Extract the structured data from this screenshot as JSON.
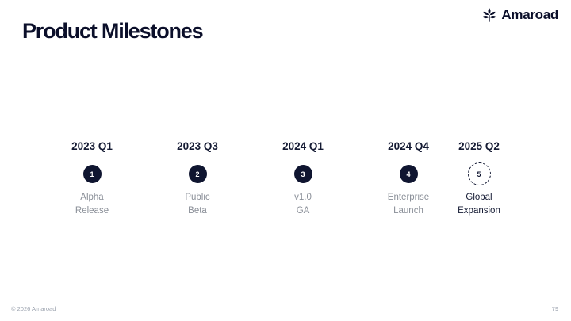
{
  "slide": {
    "title": "Product Milestones"
  },
  "brand": {
    "name": "Amaroad",
    "icon": "leaf-logo-icon",
    "color": "#0b0f2a"
  },
  "milestones": [
    {
      "date": "2023 Q1",
      "number": "1",
      "label_line1": "Alpha",
      "label_line2": "Release",
      "status": "done"
    },
    {
      "date": "2023 Q3",
      "number": "2",
      "label_line1": "Public",
      "label_line2": "Beta",
      "status": "done"
    },
    {
      "date": "2024 Q1",
      "number": "3",
      "label_line1": "v1.0",
      "label_line2": "GA",
      "status": "done"
    },
    {
      "date": "2024 Q4",
      "number": "4",
      "label_line1": "Enterprise",
      "label_line2": "Launch",
      "status": "done"
    },
    {
      "date": "2025 Q2",
      "number": "5",
      "label_line1": "Global",
      "label_line2": "Expansion",
      "status": "future"
    }
  ],
  "footer": {
    "copyright": "© 2026 Amaroad",
    "page_number": "79"
  },
  "colors": {
    "node_fill": "#0f1530",
    "line": "#9ca3af",
    "muted_text": "#8a8f98"
  }
}
